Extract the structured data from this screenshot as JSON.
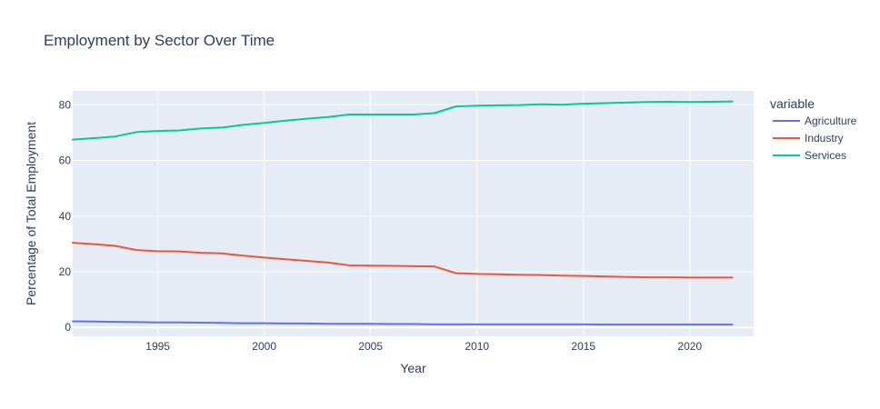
{
  "chart_data": {
    "type": "line",
    "title": "Employment by Sector Over Time",
    "xlabel": "Year",
    "ylabel": "Percentage of Total Employment",
    "xlim": [
      1991,
      2023
    ],
    "ylim": [
      -3.2,
      85
    ],
    "x_ticks": [
      1995,
      2000,
      2005,
      2010,
      2015,
      2020
    ],
    "y_ticks": [
      0,
      20,
      40,
      60,
      80
    ],
    "grid": true,
    "legend": {
      "title": "variable",
      "position": "right"
    },
    "x": [
      1991,
      1992,
      1993,
      1994,
      1995,
      1996,
      1997,
      1998,
      1999,
      2000,
      2001,
      2002,
      2003,
      2004,
      2005,
      2006,
      2007,
      2008,
      2009,
      2010,
      2011,
      2012,
      2013,
      2014,
      2015,
      2016,
      2017,
      2018,
      2019,
      2020,
      2021,
      2022
    ],
    "series": [
      {
        "name": "Agriculture",
        "color": "#636efa",
        "values": [
          2.2,
          2.1,
          2.0,
          1.9,
          1.8,
          1.8,
          1.7,
          1.6,
          1.5,
          1.5,
          1.4,
          1.4,
          1.3,
          1.3,
          1.3,
          1.2,
          1.2,
          1.1,
          1.1,
          1.1,
          1.1,
          1.1,
          1.1,
          1.1,
          1.1,
          1.0,
          1.0,
          1.0,
          1.0,
          1.0,
          1.0,
          1.0
        ]
      },
      {
        "name": "Industry",
        "color": "#ef553b",
        "values": [
          30.4,
          29.9,
          29.3,
          27.8,
          27.4,
          27.3,
          26.8,
          26.6,
          25.8,
          25.1,
          24.5,
          23.9,
          23.3,
          22.3,
          22.2,
          22.1,
          22.0,
          21.9,
          19.5,
          19.2,
          19.1,
          18.9,
          18.8,
          18.6,
          18.5,
          18.3,
          18.1,
          18.0,
          18.0,
          17.9,
          17.9,
          17.9
        ]
      },
      {
        "name": "Services",
        "color": "#00cc96",
        "values": [
          67.5,
          68.0,
          68.6,
          70.2,
          70.6,
          70.8,
          71.5,
          71.8,
          72.8,
          73.5,
          74.3,
          75.0,
          75.6,
          76.5,
          76.5,
          76.5,
          76.5,
          77.0,
          79.4,
          79.7,
          79.8,
          79.9,
          80.2,
          80.0,
          80.4,
          80.6,
          80.8,
          81.0,
          81.1,
          81.0,
          81.1,
          81.2
        ]
      }
    ]
  }
}
